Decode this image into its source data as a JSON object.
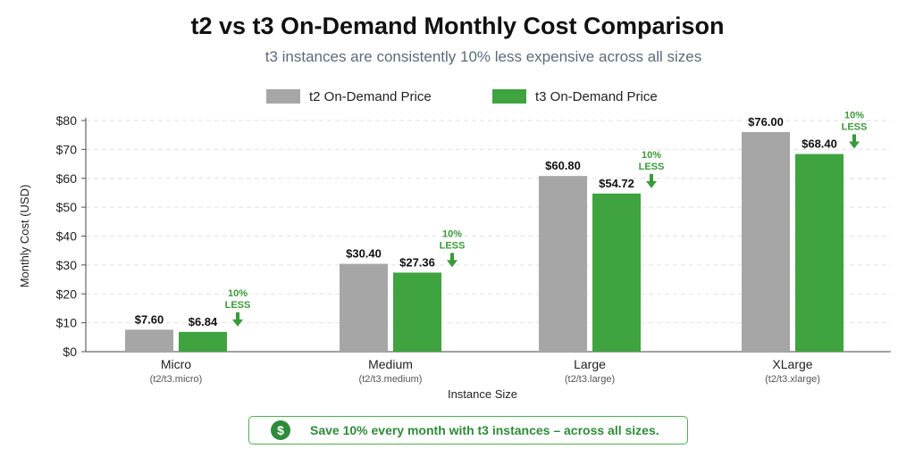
{
  "chart_data": {
    "type": "bar",
    "title": "t2 vs t3 On-Demand Monthly Cost Comparison",
    "subtitle": "t3 instances are consistently 10% less expensive across all sizes",
    "xlabel": "Instance Size",
    "ylabel": "Monthly Cost (USD)",
    "categories": [
      "Micro",
      "Medium",
      "Large",
      "XLarge"
    ],
    "category_sublabels": [
      "(t2/t3.micro)",
      "(t2/t3.medium)",
      "(t2/t3.large)",
      "(t2/t3.xlarge)"
    ],
    "series": [
      {
        "name": "t2 On-Demand Price",
        "values": [
          7.6,
          30.4,
          60.8,
          76.0
        ],
        "labels": [
          "$7.60",
          "$30.40",
          "$60.80",
          "$76.00"
        ],
        "color": "#a6a6a6"
      },
      {
        "name": "t3 On-Demand Price",
        "values": [
          6.84,
          27.36,
          54.72,
          68.4
        ],
        "labels": [
          "$6.84",
          "$27.36",
          "$54.72",
          "$68.40"
        ],
        "color": "#3fa33f"
      }
    ],
    "ylim": [
      0,
      80
    ],
    "yticks": [
      0,
      10,
      20,
      30,
      40,
      50,
      60,
      70,
      80
    ],
    "ytick_labels": [
      "$0",
      "$10",
      "$20",
      "$30",
      "$40",
      "$50",
      "$60",
      "$70",
      "$80"
    ],
    "annotation_line1": "10%",
    "annotation_line2": "LESS",
    "grid": true,
    "legend_position": "top-center"
  },
  "callout": {
    "icon": "dollar-icon",
    "icon_glyph": "$",
    "text": "Save 10% every month with t3 instances – across all sizes."
  }
}
